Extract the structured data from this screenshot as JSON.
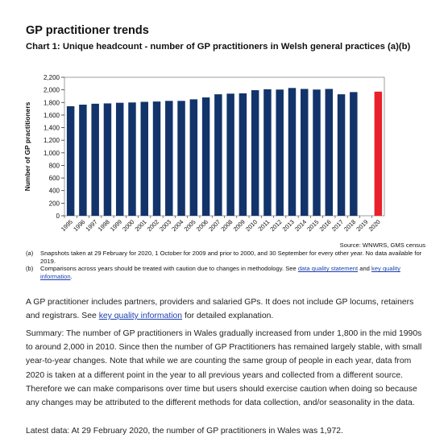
{
  "heading": "GP practitioner trends",
  "chart_title": "Chart 1: Unique headcount - number of GP practitioners in Welsh general practices (a)(b)",
  "chart_data": {
    "type": "bar",
    "title": "Chart 1: Unique headcount - number of GP practitioners in Welsh general practices (a)(b)",
    "xlabel": "",
    "ylabel": "Number of GP practitioners",
    "ylim": [
      0,
      2200
    ],
    "yticks": [
      0,
      200,
      400,
      600,
      800,
      1000,
      1200,
      1400,
      1600,
      1800,
      2000,
      2200
    ],
    "ytick_labels": [
      "0",
      "200",
      "400",
      "600",
      "800",
      "1,000",
      "1,200",
      "1,400",
      "1,600",
      "1,800",
      "2,000",
      "2,200"
    ],
    "categories": [
      "1995",
      "1996",
      "1997",
      "1998",
      "1999",
      "2000",
      "2001",
      "2002",
      "2003",
      "2004",
      "2005",
      "2006",
      "2007",
      "2008",
      "2009",
      "2010",
      "2011",
      "2012",
      "2013",
      "2014",
      "2015",
      "2016",
      "2017",
      "2018",
      "2019",
      "2020"
    ],
    "values": [
      1740,
      1765,
      1780,
      1785,
      1795,
      1800,
      1810,
      1815,
      1825,
      1825,
      1850,
      1880,
      1930,
      1940,
      1945,
      1995,
      2010,
      2005,
      2030,
      2015,
      2005,
      2015,
      1930,
      1965,
      null,
      1972
    ],
    "colors": {
      "default": "#12346b",
      "highlight": "#e8212b"
    },
    "highlight_category": "2020",
    "grid": true
  },
  "source_text": "Source: WNWRS, GMS census",
  "notes": [
    {
      "tag": "(a)",
      "text": "Snapshots taken at 29 February for 2020, 1 October for 2009 and prior to 2000, and 30 September for every other year. No data available for 2019."
    },
    {
      "tag": "(b)",
      "text_before": "Comparisons across years should be treated with caution due to changes in methodology. See ",
      "link1": "data quality statement",
      "text_mid": " and ",
      "link2": "key quality information",
      "text_after": "."
    }
  ],
  "para1": {
    "before": "A GP practitioner includes partners, providers and salaried GPs. It does not include GP locums, retainers and registrars. See ",
    "link": "key quality information",
    "after": " for detailed explanation."
  },
  "para2": "Summary: The number of GP practitioners in Wales gradually increased from under 1,800 in the mid 1990s to around 2,000 in 2010. Since then the number of GP Practitioners has remained largely stable, with small year-to-year changes. Note that while we are counting the same group of people in each year, data from 2020 is taken at a different point in the year to all previous years and collected from a different source. Therefore we can make comparisons over time but users should exercise caution when doing so because any changes may be attributed to the different methods for data collection, and/or seasonality in the data.",
  "para3": "Latest data: At 29 February 2020, the number of GP practitioners in Wales was 1,972."
}
